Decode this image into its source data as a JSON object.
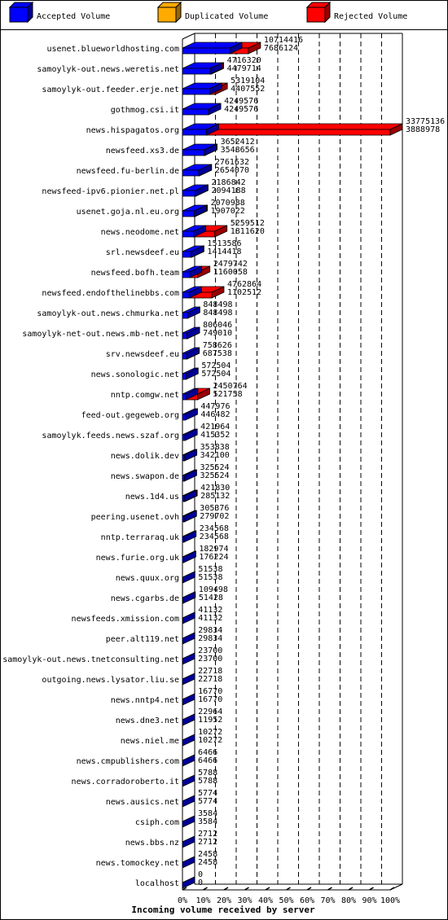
{
  "colors": {
    "accepted": "#0000ff",
    "accepted_dark": "#000099",
    "duplicated": "#ffaa00",
    "duplicated_dark": "#996600",
    "rejected": "#ff0000",
    "rejected_dark": "#990000"
  },
  "legend": [
    {
      "key": "accepted",
      "label": "Accepted Volume"
    },
    {
      "key": "duplicated",
      "label": "Duplicated Volume"
    },
    {
      "key": "rejected",
      "label": "Rejected Volume"
    }
  ],
  "chart_data": {
    "type": "bar",
    "orientation": "horizontal",
    "xlabel": "Incoming volume received by server",
    "xticks": [
      "0%",
      "10%",
      "20%",
      "30%",
      "40%",
      "50%",
      "60%",
      "70%",
      "80%",
      "90%",
      "100%"
    ],
    "xlim": [
      0,
      100
    ],
    "max_value": 33775136,
    "grid": true,
    "legend_position": "top",
    "categories": [
      "usenet.blueworldhosting.com",
      "samoylyk-out.news.weretis.net",
      "samoylyk-out.feeder.erje.net",
      "gothmog.csi.it",
      "news.hispagatos.org",
      "newsfeed.xs3.de",
      "newsfeed.fu-berlin.de",
      "newsfeed-ipv6.pionier.net.pl",
      "usenet.goja.nl.eu.org",
      "news.neodome.net",
      "srl.newsdeef.eu",
      "newsfeed.bofh.team",
      "newsfeed.endofthelinebbs.com",
      "samoylyk-out.news.chmurka.net",
      "samoylyk-net-out.news.mb-net.net",
      "srv.newsdeef.eu",
      "news.sonologic.net",
      "nntp.comgw.net",
      "feed-out.gegeweb.org",
      "samoylyk.feeds.news.szaf.org",
      "news.dolik.dev",
      "news.swapon.de",
      "news.1d4.us",
      "peering.usenet.ovh",
      "nntp.terraraq.uk",
      "news.furie.org.uk",
      "news.quux.org",
      "news.cgarbs.de",
      "newsfeeds.xmission.com",
      "peer.alt119.net",
      "samoylyk-out.news.tnetconsulting.net",
      "outgoing.news.lysator.liu.se",
      "news.nntp4.net",
      "news.dne3.net",
      "news.niel.me",
      "news.cmpublishers.com",
      "news.corradoroberto.it",
      "news.ausics.net",
      "csiph.com",
      "news.bbs.nz",
      "news.tomockey.net",
      "localhost"
    ],
    "series": [
      {
        "name": "Rejected Volume",
        "key": "rejected",
        "values": [
          10714416,
          4716320,
          5319104,
          4249576,
          33775136,
          3652412,
          2761632,
          2186842,
          2070988,
          5259512,
          1513586,
          2479742,
          4762864,
          848498,
          806046,
          758626,
          572504,
          2450764,
          447976,
          421964,
          353838,
          325524,
          421830,
          305376,
          234568,
          182974,
          51538,
          109498,
          41132,
          29834,
          23700,
          22718,
          16770,
          22964,
          10272,
          6466,
          5788,
          5774,
          3584,
          2712,
          2458,
          0
        ]
      },
      {
        "name": "Accepted Volume",
        "key": "accepted",
        "values": [
          7686124,
          4479714,
          4407552,
          4249576,
          3888978,
          3548656,
          2654070,
          2094188,
          1907022,
          1811620,
          1414418,
          1160058,
          1102512,
          848498,
          749010,
          687538,
          572504,
          521758,
          446482,
          415352,
          342100,
          325524,
          285132,
          279702,
          234568,
          176224,
          51538,
          51428,
          41132,
          29834,
          23700,
          22718,
          16770,
          11952,
          10272,
          6466,
          5788,
          5774,
          3584,
          2712,
          2458,
          0
        ]
      }
    ]
  }
}
